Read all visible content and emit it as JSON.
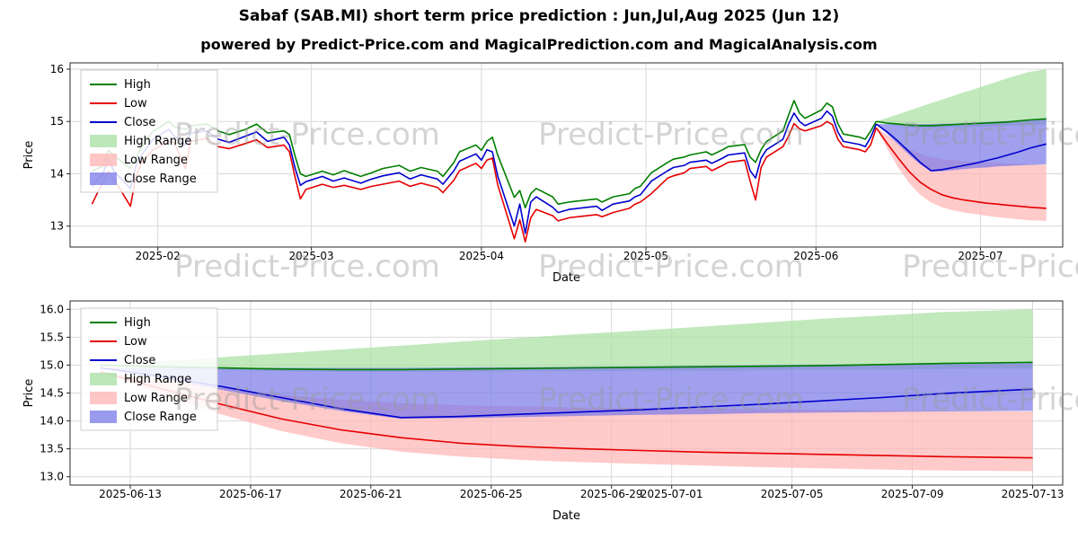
{
  "page": {
    "title": "Sabaf (SAB.MI) short term price prediction : Jun,Jul,Aug 2025 (Jun 12)",
    "subtitle": "powered by Predict-Price.com and MagicalPrediction.com and MagicalAnalysis.com",
    "watermark": "Predict-Price.com"
  },
  "chart_data": [
    {
      "id": "history-with-forecast-chart",
      "type": "line",
      "title": "",
      "xlabel": "Date",
      "ylabel": "Price",
      "grid": true,
      "legend_position": "upper left",
      "x_domain": [
        "2025-01-16",
        "2025-07-16"
      ],
      "y_domain": [
        12.6,
        16.12
      ],
      "x_ticks": [
        {
          "label": "2025-02",
          "date": "2025-02-01"
        },
        {
          "label": "2025-03",
          "date": "2025-03-01"
        },
        {
          "label": "2025-04",
          "date": "2025-04-01"
        },
        {
          "label": "2025-05",
          "date": "2025-05-01"
        },
        {
          "label": "2025-06",
          "date": "2025-06-01"
        },
        {
          "label": "2025-07",
          "date": "2025-07-01"
        }
      ],
      "y_ticks": [
        {
          "label": "13",
          "v": 13
        },
        {
          "label": "14",
          "v": 14
        },
        {
          "label": "15",
          "v": 15
        },
        {
          "label": "16",
          "v": 16
        }
      ],
      "legend": [
        "High",
        "Low",
        "Close",
        "High Range",
        "Low Range",
        "Close Range"
      ],
      "colors": {
        "high": "#007f00",
        "low": "#e60000",
        "close": "#0000cd",
        "high_range": "#a6dfa0",
        "low_range": "#ffb3b3",
        "close_range": "#7878e8"
      },
      "historical": {
        "dates": [
          "2025-01-20",
          "2025-01-22",
          "2025-01-23",
          "2025-01-24",
          "2025-01-27",
          "2025-01-28",
          "2025-01-29",
          "2025-01-31",
          "2025-02-03",
          "2025-02-04",
          "2025-02-06",
          "2025-02-07",
          "2025-02-10",
          "2025-02-12",
          "2025-02-14",
          "2025-02-17",
          "2025-02-19",
          "2025-02-21",
          "2025-02-24",
          "2025-02-25",
          "2025-02-26",
          "2025-02-27",
          "2025-02-28",
          "2025-03-03",
          "2025-03-05",
          "2025-03-07",
          "2025-03-10",
          "2025-03-12",
          "2025-03-14",
          "2025-03-17",
          "2025-03-19",
          "2025-03-21",
          "2025-03-24",
          "2025-03-25",
          "2025-03-27",
          "2025-03-28",
          "2025-03-31",
          "2025-04-01",
          "2025-04-02",
          "2025-04-03",
          "2025-04-04",
          "2025-04-07",
          "2025-04-08",
          "2025-04-09",
          "2025-04-10",
          "2025-04-11",
          "2025-04-14",
          "2025-04-15",
          "2025-04-17",
          "2025-04-22",
          "2025-04-23",
          "2025-04-25",
          "2025-04-28",
          "2025-04-29",
          "2025-04-30",
          "2025-05-02",
          "2025-05-05",
          "2025-05-06",
          "2025-05-08",
          "2025-05-09",
          "2025-05-12",
          "2025-05-13",
          "2025-05-15",
          "2025-05-16",
          "2025-05-19",
          "2025-05-20",
          "2025-05-21",
          "2025-05-22",
          "2025-05-23",
          "2025-05-26",
          "2025-05-27",
          "2025-05-28",
          "2025-05-29",
          "2025-05-30",
          "2025-06-02",
          "2025-06-03",
          "2025-06-04",
          "2025-06-05",
          "2025-06-06",
          "2025-06-09",
          "2025-06-10",
          "2025-06-11",
          "2025-06-12"
        ],
        "high": [
          14.05,
          14.15,
          14.45,
          14.35,
          14.1,
          14.3,
          14.5,
          14.8,
          15.0,
          14.9,
          14.85,
          14.92,
          14.95,
          14.82,
          14.75,
          14.85,
          14.95,
          14.78,
          14.82,
          14.75,
          14.35,
          14.0,
          13.95,
          14.05,
          13.98,
          14.06,
          13.95,
          14.02,
          14.1,
          14.16,
          14.05,
          14.12,
          14.05,
          13.95,
          14.22,
          14.42,
          14.55,
          14.45,
          14.62,
          14.7,
          14.35,
          13.55,
          13.68,
          13.35,
          13.62,
          13.72,
          13.56,
          13.42,
          13.46,
          13.52,
          13.46,
          13.56,
          13.62,
          13.72,
          13.76,
          14.02,
          14.22,
          14.28,
          14.32,
          14.36,
          14.42,
          14.36,
          14.46,
          14.52,
          14.56,
          14.32,
          14.22,
          14.46,
          14.62,
          14.82,
          15.12,
          15.4,
          15.16,
          15.06,
          15.22,
          15.35,
          15.28,
          14.96,
          14.76,
          14.7,
          14.66,
          14.82,
          15.0
        ],
        "low": [
          13.42,
          13.85,
          14.05,
          13.9,
          13.38,
          13.95,
          14.2,
          14.45,
          14.62,
          14.6,
          14.1,
          14.62,
          14.68,
          14.52,
          14.48,
          14.58,
          14.65,
          14.5,
          14.55,
          14.42,
          13.95,
          13.52,
          13.7,
          13.8,
          13.74,
          13.78,
          13.7,
          13.76,
          13.8,
          13.86,
          13.76,
          13.82,
          13.74,
          13.64,
          13.88,
          14.06,
          14.2,
          14.1,
          14.26,
          14.3,
          13.78,
          12.76,
          13.12,
          12.7,
          13.16,
          13.32,
          13.2,
          13.1,
          13.16,
          13.22,
          13.18,
          13.26,
          13.34,
          13.42,
          13.46,
          13.62,
          13.92,
          13.96,
          14.02,
          14.1,
          14.14,
          14.06,
          14.16,
          14.22,
          14.26,
          13.86,
          13.5,
          14.12,
          14.32,
          14.52,
          14.72,
          14.96,
          14.86,
          14.82,
          14.92,
          15.0,
          14.94,
          14.66,
          14.52,
          14.46,
          14.42,
          14.56,
          14.88
        ],
        "close": [
          13.75,
          14.0,
          14.3,
          14.05,
          13.72,
          14.15,
          14.35,
          14.65,
          14.85,
          14.72,
          14.55,
          14.78,
          14.82,
          14.66,
          14.6,
          14.72,
          14.8,
          14.62,
          14.7,
          14.55,
          14.12,
          13.78,
          13.85,
          13.95,
          13.86,
          13.92,
          13.82,
          13.9,
          13.96,
          14.02,
          13.9,
          13.98,
          13.9,
          13.8,
          14.06,
          14.24,
          14.38,
          14.26,
          14.46,
          14.42,
          13.95,
          13.0,
          13.42,
          12.86,
          13.46,
          13.56,
          13.36,
          13.26,
          13.32,
          13.38,
          13.3,
          13.42,
          13.48,
          13.56,
          13.6,
          13.86,
          14.06,
          14.12,
          14.16,
          14.22,
          14.26,
          14.2,
          14.3,
          14.36,
          14.4,
          14.06,
          13.92,
          14.3,
          14.46,
          14.66,
          14.95,
          15.16,
          15.0,
          14.92,
          15.06,
          15.2,
          15.1,
          14.8,
          14.62,
          14.56,
          14.52,
          14.7,
          14.95
        ]
      },
      "forecast": {
        "dates": [
          "2025-06-12",
          "2025-06-14",
          "2025-06-16",
          "2025-06-18",
          "2025-06-20",
          "2025-06-22",
          "2025-06-24",
          "2025-06-26",
          "2025-06-28",
          "2025-06-30",
          "2025-07-02",
          "2025-07-04",
          "2025-07-06",
          "2025-07-08",
          "2025-07-10",
          "2025-07-13"
        ],
        "high": [
          15.0,
          14.97,
          14.95,
          14.93,
          14.92,
          14.92,
          14.93,
          14.94,
          14.95,
          14.96,
          14.97,
          14.98,
          14.99,
          15.01,
          15.03,
          15.05
        ],
        "high_upper": [
          15.0,
          15.07,
          15.14,
          15.21,
          15.28,
          15.35,
          15.42,
          15.49,
          15.56,
          15.62,
          15.69,
          15.76,
          15.83,
          15.89,
          15.95,
          16.0
        ],
        "high_lower": [
          15.0,
          14.94,
          14.91,
          14.89,
          14.88,
          14.88,
          14.88,
          14.89,
          14.89,
          14.9,
          14.9,
          14.91,
          14.92,
          14.92,
          14.93,
          14.94
        ],
        "low": [
          14.88,
          14.58,
          14.3,
          14.04,
          13.84,
          13.7,
          13.6,
          13.54,
          13.5,
          13.47,
          13.44,
          13.42,
          13.4,
          13.38,
          13.36,
          13.34
        ],
        "low_upper": [
          14.88,
          14.74,
          14.6,
          14.47,
          14.38,
          14.32,
          14.28,
          14.26,
          14.24,
          14.23,
          14.22,
          14.21,
          14.2,
          14.19,
          14.18,
          14.17
        ],
        "low_lower": [
          14.88,
          14.48,
          14.12,
          13.82,
          13.6,
          13.45,
          13.36,
          13.3,
          13.26,
          13.23,
          13.2,
          13.17,
          13.15,
          13.13,
          13.11,
          13.1
        ],
        "close": [
          14.95,
          14.8,
          14.62,
          14.42,
          14.22,
          14.06,
          14.08,
          14.12,
          14.16,
          14.2,
          14.25,
          14.3,
          14.36,
          14.42,
          14.49,
          14.57
        ],
        "close_upper": [
          14.95,
          14.95,
          14.95,
          14.95,
          14.95,
          14.95,
          14.96,
          14.96,
          14.97,
          14.98,
          14.99,
          15.0,
          15.01,
          15.02,
          15.04,
          15.05
        ],
        "close_lower": [
          14.95,
          14.76,
          14.56,
          14.36,
          14.18,
          14.04,
          14.05,
          14.07,
          14.09,
          14.11,
          14.12,
          14.14,
          14.15,
          14.16,
          14.17,
          14.18
        ]
      }
    },
    {
      "id": "forecast-detail-chart",
      "type": "line",
      "title": "",
      "xlabel": "Date",
      "ylabel": "Price",
      "grid": true,
      "legend_position": "upper left",
      "x_domain": [
        "2025-06-11",
        "2025-07-14"
      ],
      "y_domain": [
        12.85,
        16.15
      ],
      "x_ticks": [
        {
          "label": "2025-06-13",
          "date": "2025-06-13"
        },
        {
          "label": "2025-06-17",
          "date": "2025-06-17"
        },
        {
          "label": "2025-06-21",
          "date": "2025-06-21"
        },
        {
          "label": "2025-06-25",
          "date": "2025-06-25"
        },
        {
          "label": "2025-06-29",
          "date": "2025-06-29"
        },
        {
          "label": "2025-07-01",
          "date": "2025-07-01"
        },
        {
          "label": "2025-07-05",
          "date": "2025-07-05"
        },
        {
          "label": "2025-07-09",
          "date": "2025-07-09"
        },
        {
          "label": "2025-07-13",
          "date": "2025-07-13"
        }
      ],
      "y_ticks": [
        {
          "label": "13.0",
          "v": 13.0
        },
        {
          "label": "13.5",
          "v": 13.5
        },
        {
          "label": "14.0",
          "v": 14.0
        },
        {
          "label": "14.5",
          "v": 14.5
        },
        {
          "label": "15.0",
          "v": 15.0
        },
        {
          "label": "15.5",
          "v": 15.5
        },
        {
          "label": "16.0",
          "v": 16.0
        }
      ],
      "legend": [
        "High",
        "Low",
        "Close",
        "High Range",
        "Low Range",
        "Close Range"
      ],
      "colors": {
        "high": "#007f00",
        "low": "#e60000",
        "close": "#0000cd",
        "high_range": "#a6dfa0",
        "low_range": "#ffb3b3",
        "close_range": "#7878e8"
      },
      "forecast": {
        "dates": [
          "2025-06-12",
          "2025-06-14",
          "2025-06-16",
          "2025-06-18",
          "2025-06-20",
          "2025-06-22",
          "2025-06-24",
          "2025-06-26",
          "2025-06-28",
          "2025-06-30",
          "2025-07-02",
          "2025-07-04",
          "2025-07-06",
          "2025-07-08",
          "2025-07-10",
          "2025-07-13"
        ],
        "high": [
          15.0,
          14.97,
          14.95,
          14.93,
          14.92,
          14.92,
          14.93,
          14.94,
          14.95,
          14.96,
          14.97,
          14.98,
          14.99,
          15.01,
          15.03,
          15.05
        ],
        "high_upper": [
          15.0,
          15.07,
          15.14,
          15.21,
          15.28,
          15.35,
          15.42,
          15.49,
          15.56,
          15.62,
          15.69,
          15.76,
          15.83,
          15.89,
          15.95,
          16.0
        ],
        "high_lower": [
          15.0,
          14.94,
          14.91,
          14.89,
          14.88,
          14.88,
          14.88,
          14.89,
          14.89,
          14.9,
          14.9,
          14.91,
          14.92,
          14.92,
          14.93,
          14.94
        ],
        "low": [
          14.88,
          14.58,
          14.3,
          14.04,
          13.84,
          13.7,
          13.6,
          13.54,
          13.5,
          13.47,
          13.44,
          13.42,
          13.4,
          13.38,
          13.36,
          13.34
        ],
        "low_upper": [
          14.88,
          14.74,
          14.6,
          14.47,
          14.38,
          14.32,
          14.28,
          14.26,
          14.24,
          14.23,
          14.22,
          14.21,
          14.2,
          14.19,
          14.18,
          14.17
        ],
        "low_lower": [
          14.88,
          14.48,
          14.12,
          13.82,
          13.6,
          13.45,
          13.36,
          13.3,
          13.26,
          13.23,
          13.2,
          13.17,
          13.15,
          13.13,
          13.11,
          13.1
        ],
        "close": [
          14.95,
          14.8,
          14.62,
          14.42,
          14.22,
          14.06,
          14.08,
          14.12,
          14.16,
          14.2,
          14.25,
          14.3,
          14.36,
          14.42,
          14.49,
          14.57
        ],
        "close_upper": [
          14.95,
          14.95,
          14.95,
          14.95,
          14.95,
          14.95,
          14.96,
          14.96,
          14.97,
          14.98,
          14.99,
          15.0,
          15.01,
          15.02,
          15.04,
          15.05
        ],
        "close_lower": [
          14.95,
          14.76,
          14.56,
          14.36,
          14.18,
          14.04,
          14.05,
          14.07,
          14.09,
          14.11,
          14.12,
          14.14,
          14.15,
          14.16,
          14.17,
          14.18
        ]
      }
    }
  ]
}
